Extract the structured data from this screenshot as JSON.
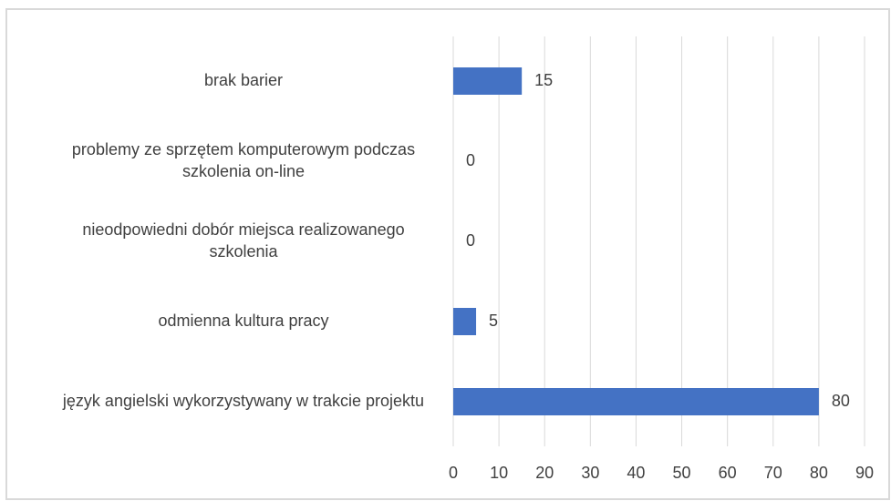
{
  "chart_data": {
    "type": "barh",
    "categories": [
      "brak barier",
      "problemy ze sprzętem komputerowym podczas szkolenia on-line",
      "nieodpowiedni dobór miejsca realizowanego szkolenia",
      "odmienna kultura pracy",
      "język angielski wykorzystywany w trakcie projektu"
    ],
    "values": [
      15,
      0,
      0,
      5,
      80
    ],
    "color": "#4472c4",
    "xlim": [
      0,
      90
    ],
    "xticks": [
      0,
      10,
      20,
      30,
      40,
      50,
      60,
      70,
      80,
      90
    ],
    "grid": true
  }
}
